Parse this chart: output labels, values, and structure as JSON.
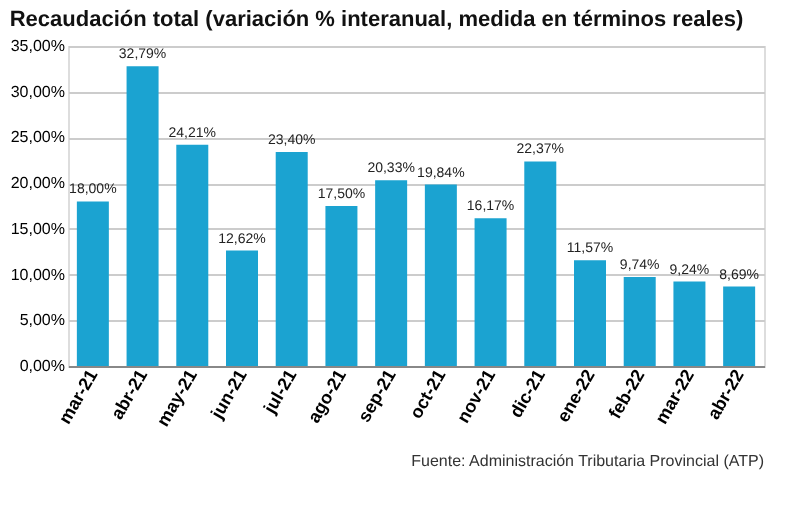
{
  "chart_data": {
    "type": "bar",
    "title": "Recaudación total (variación % interanual, medida en términos reales)",
    "categories": [
      "mar-21",
      "abr-21",
      "may-21",
      "jun-21",
      "jul-21",
      "ago-21",
      "sep-21",
      "oct-21",
      "nov-21",
      "dic-21",
      "ene-22",
      "feb-22",
      "mar-22",
      "abr-22"
    ],
    "values": [
      18.0,
      32.79,
      24.21,
      12.62,
      23.4,
      17.5,
      20.33,
      19.84,
      16.17,
      22.37,
      11.57,
      9.74,
      9.24,
      8.69
    ],
    "value_labels": [
      "18,00%",
      "32,79%",
      "24,21%",
      "12,62%",
      "23,40%",
      "17,50%",
      "20,33%",
      "19,84%",
      "16,17%",
      "22,37%",
      "11,57%",
      "9,74%",
      "9,24%",
      "8,69%"
    ],
    "color": "#1ba3d1",
    "ylim": [
      0,
      35
    ],
    "yticks": [
      {
        "value": 0,
        "label": "0,00%"
      },
      {
        "value": 5,
        "label": "5,00%"
      },
      {
        "value": 10,
        "label": "10,00%"
      },
      {
        "value": 15,
        "label": "15,00%"
      },
      {
        "value": 20,
        "label": "20,00%"
      },
      {
        "value": 25,
        "label": "25,00%"
      },
      {
        "value": 30,
        "label": "30,00%"
      },
      {
        "value": 35,
        "label": "35,00%"
      }
    ],
    "grid": "y",
    "annotations": [
      "Fuente: Administración Tributaria Provincial (ATP)"
    ]
  }
}
